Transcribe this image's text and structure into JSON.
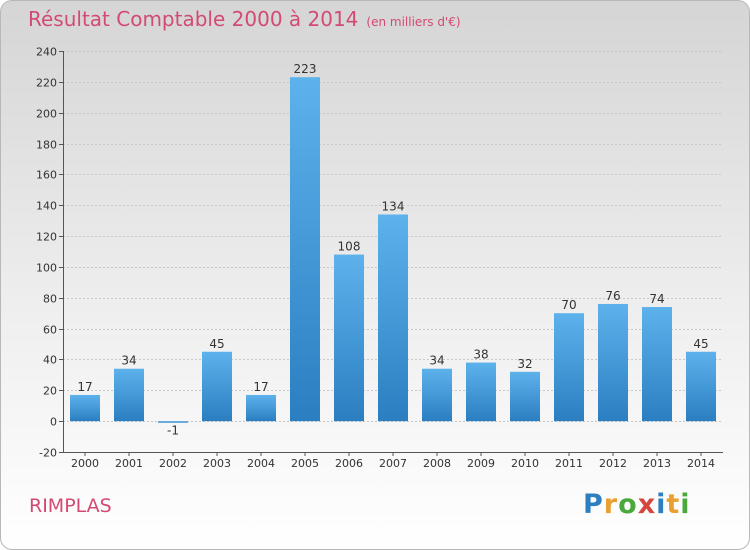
{
  "title": "Résultat Comptable 2000 à 2014",
  "subtitle": "(en milliers d'€)",
  "place": "RIMPLAS",
  "logo": "Proxiti",
  "colors": {
    "title": "#d34a72",
    "bar_top": "#5db2ec",
    "bar_bottom": "#2b7fc1"
  },
  "chart_data": {
    "type": "bar",
    "categories": [
      "2000",
      "2001",
      "2002",
      "2003",
      "2004",
      "2005",
      "2006",
      "2007",
      "2008",
      "2009",
      "2010",
      "2011",
      "2012",
      "2013",
      "2014"
    ],
    "values": [
      17,
      34,
      -1,
      45,
      17,
      223,
      108,
      134,
      34,
      38,
      32,
      70,
      76,
      74,
      45
    ],
    "value_labels": [
      "17",
      "34",
      "-1",
      "45",
      "17",
      "223",
      "108",
      "134",
      "34",
      "38",
      "32",
      "70",
      "76",
      "74",
      "45"
    ],
    "yticks": [
      -20,
      0,
      20,
      40,
      60,
      80,
      100,
      120,
      140,
      160,
      180,
      200,
      220,
      240
    ],
    "ylim": [
      -20,
      240
    ],
    "grid": true
  }
}
